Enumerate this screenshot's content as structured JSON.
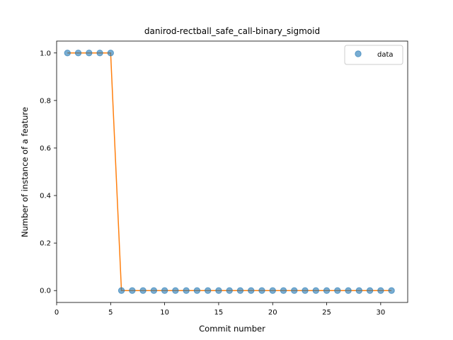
{
  "chart_data": {
    "type": "scatter",
    "title": "danirod-rectball_safe_call-binary_sigmoid",
    "xlabel": "Commit number",
    "ylabel": "Number of instance of a feature",
    "xlim": [
      0,
      32.5
    ],
    "ylim": [
      -0.05,
      1.05
    ],
    "xticks": [
      0,
      5,
      10,
      15,
      20,
      25,
      30
    ],
    "xtick_labels": [
      "0",
      "5",
      "10",
      "15",
      "20",
      "25",
      "30"
    ],
    "yticks": [
      0.0,
      0.2,
      0.4,
      0.6,
      0.8,
      1.0
    ],
    "ytick_labels": [
      "0.0",
      "0.2",
      "0.4",
      "0.6",
      "0.8",
      "1.0"
    ],
    "grid": false,
    "legend": {
      "position": "top-right",
      "entries": [
        "data"
      ]
    },
    "colors": {
      "points": "#1f77b4",
      "fit": "#ff7f0e"
    },
    "series": [
      {
        "name": "data",
        "kind": "scatter",
        "x": [
          1,
          2,
          3,
          4,
          5,
          6,
          7,
          8,
          9,
          10,
          11,
          12,
          13,
          14,
          15,
          16,
          17,
          18,
          19,
          20,
          21,
          22,
          23,
          24,
          25,
          26,
          27,
          28,
          29,
          30,
          31
        ],
        "y": [
          1,
          1,
          1,
          1,
          1,
          0,
          0,
          0,
          0,
          0,
          0,
          0,
          0,
          0,
          0,
          0,
          0,
          0,
          0,
          0,
          0,
          0,
          0,
          0,
          0,
          0,
          0,
          0,
          0,
          0,
          0
        ]
      },
      {
        "kind": "line",
        "x": [
          1,
          2,
          3,
          4,
          5,
          6,
          7,
          8,
          9,
          10,
          11,
          12,
          13,
          14,
          15,
          16,
          17,
          18,
          19,
          20,
          21,
          22,
          23,
          24,
          25,
          26,
          27,
          28,
          29,
          30,
          31
        ],
        "y": [
          1,
          1,
          1,
          1,
          1,
          0,
          0,
          0,
          0,
          0,
          0,
          0,
          0,
          0,
          0,
          0,
          0,
          0,
          0,
          0,
          0,
          0,
          0,
          0,
          0,
          0,
          0,
          0,
          0,
          0,
          0
        ]
      }
    ]
  }
}
